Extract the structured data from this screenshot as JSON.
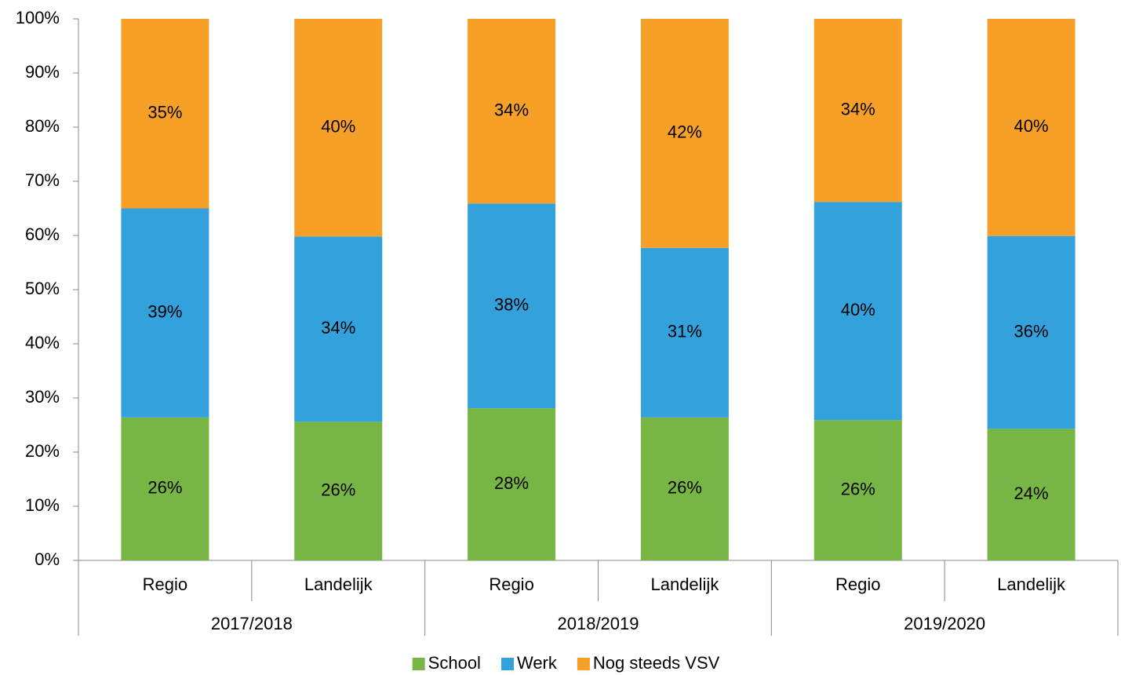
{
  "chart_data": {
    "type": "stacked_bar",
    "categories": [
      "Regio",
      "Landelijk",
      "Regio",
      "Landelijk",
      "Regio",
      "Landelijk"
    ],
    "groups": [
      "2017/2018",
      "2018/2019",
      "2019/2020"
    ],
    "series": [
      {
        "name": "School",
        "color": "#77b644",
        "values": [
          26.4,
          25.6,
          28.1,
          26.4,
          25.9,
          24.3
        ],
        "value_labels": [
          "26%",
          "26%",
          "28%",
          "26%",
          "26%",
          "24%"
        ]
      },
      {
        "name": "Werk",
        "color": "#33a1db",
        "values": [
          38.6,
          34.2,
          37.8,
          31.3,
          40.3,
          35.6
        ],
        "value_labels": [
          "39%",
          "34%",
          "38%",
          "31%",
          "40%",
          "36%"
        ]
      },
      {
        "name": "Nog steeds VSV",
        "color": "#f7a028",
        "values": [
          35.0,
          40.2,
          34.1,
          42.3,
          33.8,
          40.1
        ],
        "value_labels": [
          "35%",
          "40%",
          "34%",
          "42%",
          "34%",
          "40%"
        ]
      }
    ],
    "ylim": [
      0,
      100
    ],
    "yticks": [
      {
        "value": 0,
        "label": "0%"
      },
      {
        "value": 10,
        "label": "10%"
      },
      {
        "value": 20,
        "label": "20%"
      },
      {
        "value": 30,
        "label": "30%"
      },
      {
        "value": 40,
        "label": "40%"
      },
      {
        "value": 50,
        "label": "50%"
      },
      {
        "value": 60,
        "label": "60%"
      },
      {
        "value": 70,
        "label": "70%"
      },
      {
        "value": 80,
        "label": "80%"
      },
      {
        "value": 90,
        "label": "90%"
      },
      {
        "value": 100,
        "label": "100%"
      }
    ],
    "legend": "bottom"
  }
}
